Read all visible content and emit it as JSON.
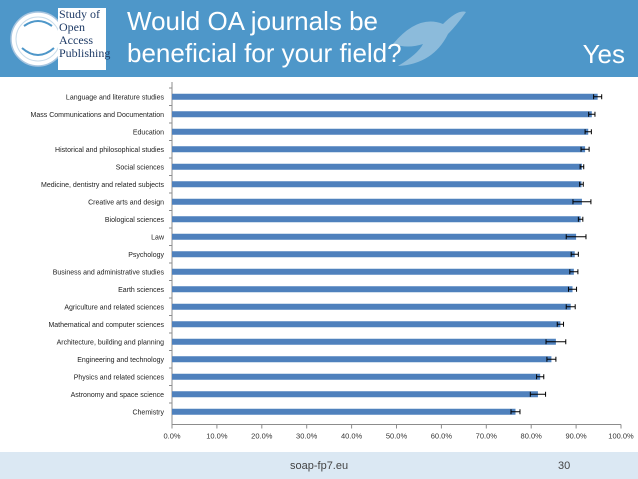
{
  "header": {
    "logo_lines": [
      "Study of",
      "Open",
      "Access",
      "Publishing"
    ],
    "title_line1": "Would OA journals be",
    "title_line2": "beneficial for your field?",
    "answer_label": "Yes"
  },
  "footer": {
    "url": "soap-fp7.eu",
    "page_number": "30"
  },
  "colors": {
    "header_bg": "#4e97c9",
    "bar": "#4f81bd",
    "footer_bg": "#dbe8f3"
  },
  "chart_data": {
    "type": "bar",
    "orientation": "horizontal",
    "title": "",
    "xlabel": "",
    "ylabel": "",
    "xlim": [
      0,
      100
    ],
    "x_ticks": [
      "0.0%",
      "10.0%",
      "20.0%",
      "30.0%",
      "40.0%",
      "50.0%",
      "60.0%",
      "70.0%",
      "80.0%",
      "90.0%",
      "100.0%"
    ],
    "grid": false,
    "categories": [
      "Language and literature studies",
      "Mass Communications and Documentation",
      "Education",
      "Historical and philosophical studies",
      "Social sciences",
      "Medicine, dentistry and related subjects",
      "Creative arts and design",
      "Biological sciences",
      "Law",
      "Psychology",
      "Business and administrative studies",
      "Earth sciences",
      "Agriculture and related sciences",
      "Mathematical and computer sciences",
      "Architecture, building and planning",
      "Engineering and technology",
      "Physics and related sciences",
      "Astronomy and space science",
      "Chemistry"
    ],
    "values": [
      94.8,
      93.5,
      92.7,
      92.0,
      91.3,
      91.2,
      91.3,
      91.0,
      90.0,
      89.7,
      89.5,
      89.2,
      88.8,
      86.5,
      85.5,
      84.5,
      82.0,
      81.5,
      76.5
    ],
    "error": [
      0.9,
      0.7,
      0.7,
      0.9,
      0.4,
      0.4,
      2.0,
      0.5,
      2.2,
      0.8,
      0.9,
      0.9,
      1.0,
      0.7,
      2.2,
      1.0,
      0.8,
      1.7,
      1.0
    ]
  }
}
